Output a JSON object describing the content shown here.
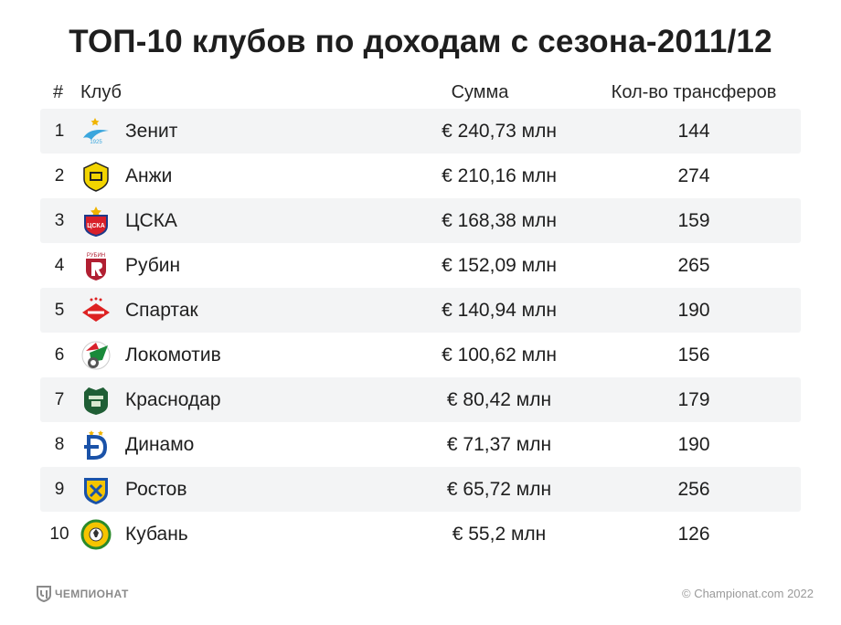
{
  "title": "ТОП-10 клубов по доходам с сезона-2011/12",
  "header": {
    "rank": "#",
    "club": "Клуб",
    "sum": "Сумма",
    "count": "Кол-во трансферов"
  },
  "chart_data": {
    "type": "table",
    "title": "ТОП-10 клубов по доходам с сезона-2011/12",
    "columns": [
      "#",
      "Клуб",
      "Сумма",
      "Кол-во трансферов"
    ],
    "rows": [
      {
        "rank": "1",
        "club": "Зенит",
        "sum": "€ 240,73 млн",
        "count": "144",
        "logo_icon": "zenit-logo-icon",
        "logo_color": "#3aa6dd"
      },
      {
        "rank": "2",
        "club": "Анжи",
        "sum": "€ 210,16 млн",
        "count": "274",
        "logo_icon": "anzhi-logo-icon",
        "logo_color": "#f2d400"
      },
      {
        "rank": "3",
        "club": "ЦСКА",
        "sum": "€ 168,38 млн",
        "count": "159",
        "logo_icon": "cska-logo-icon",
        "logo_color": "#d8202a"
      },
      {
        "rank": "4",
        "club": "Рубин",
        "sum": "€ 152,09 млн",
        "count": "265",
        "logo_icon": "rubin-logo-icon",
        "logo_color": "#b11f32"
      },
      {
        "rank": "5",
        "club": "Спартак",
        "sum": "€ 140,94 млн",
        "count": "190",
        "logo_icon": "spartak-logo-icon",
        "logo_color": "#dd2222"
      },
      {
        "rank": "6",
        "club": "Локомотив",
        "sum": "€ 100,62 млн",
        "count": "156",
        "logo_icon": "lokomotiv-logo-icon",
        "logo_color": "#1a8a3a"
      },
      {
        "rank": "7",
        "club": "Краснодар",
        "sum": "€ 80,42 млн",
        "count": "179",
        "logo_icon": "krasnodar-logo-icon",
        "logo_color": "#1f5e35"
      },
      {
        "rank": "8",
        "club": "Динамо",
        "sum": "€ 71,37 млн",
        "count": "190",
        "logo_icon": "dinamo-logo-icon",
        "logo_color": "#1a52a8"
      },
      {
        "rank": "9",
        "club": "Ростов",
        "sum": "€ 65,72 млн",
        "count": "256",
        "logo_icon": "rostov-logo-icon",
        "logo_color": "#f5c400"
      },
      {
        "rank": "10",
        "club": "Кубань",
        "sum": "€ 55,2 млн",
        "count": "126",
        "logo_icon": "kuban-logo-icon",
        "logo_color": "#2a8a2a"
      }
    ]
  },
  "footer": {
    "brand": "ЧЕМПИОНАТ",
    "copyright": "© Championat.com 2022",
    "brand_color": "#8a8a8a"
  }
}
